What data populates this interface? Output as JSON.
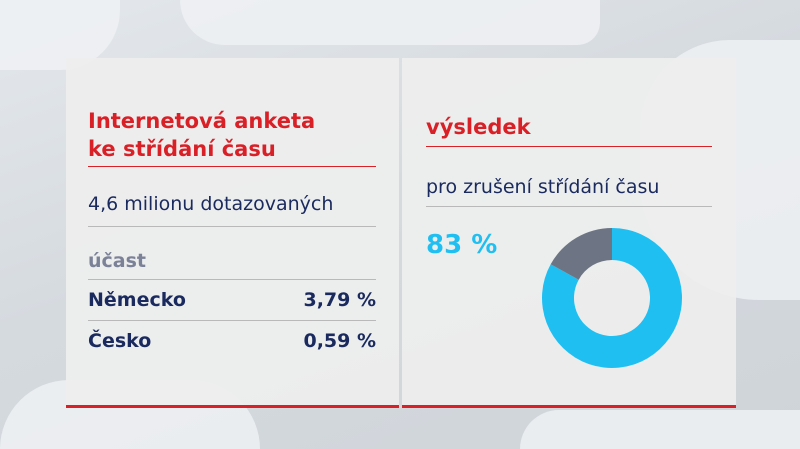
{
  "left_panel": {
    "title_line1": "Internetová anketa",
    "title_line2": "ke střídání času",
    "respondents": "4,6 milionu dotazovaných",
    "participation_label": "účast",
    "rows": [
      {
        "country": "Německo",
        "value": "3,79 %"
      },
      {
        "country": "Česko",
        "value": "0,59 %"
      }
    ]
  },
  "right_panel": {
    "title": "výsledek",
    "subtitle": "pro zrušení střídání času",
    "result_text": "83 %"
  },
  "chart_data": {
    "type": "pie",
    "donut": true,
    "slices": [
      {
        "label": "pro zrušení střídání času",
        "value": 83,
        "color": "#1fbff2"
      },
      {
        "label": "",
        "value": 17,
        "color": "#6d7585"
      }
    ]
  }
}
